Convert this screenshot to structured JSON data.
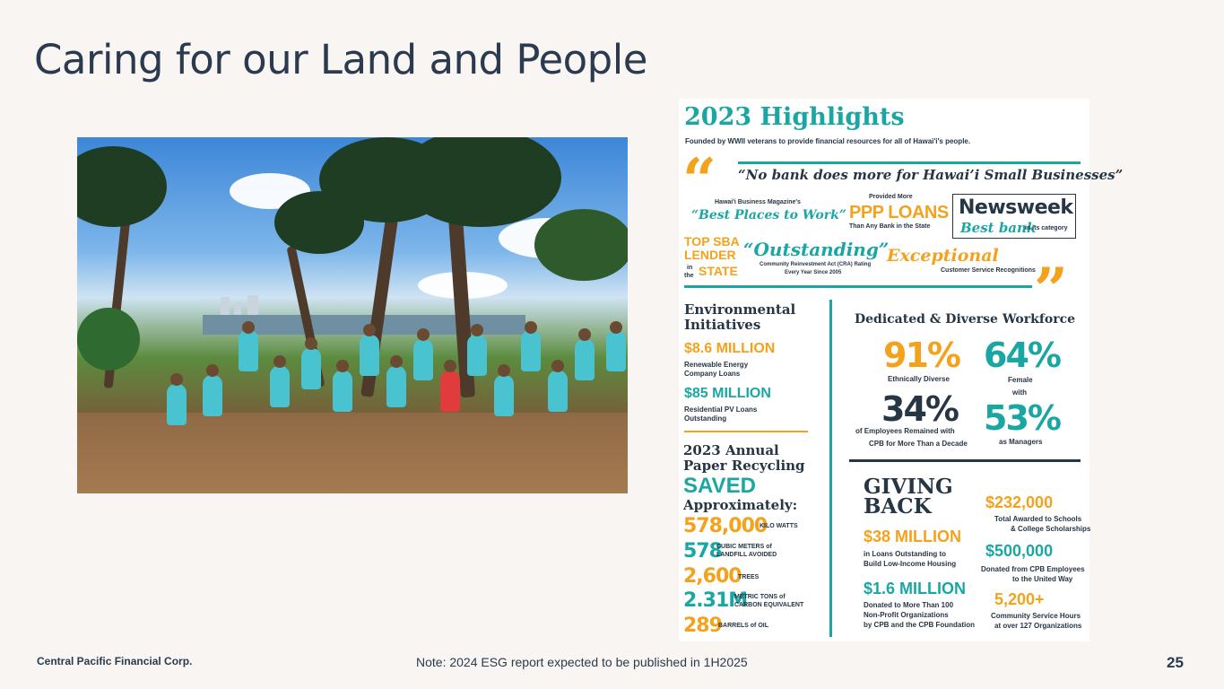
{
  "slide": {
    "title": "Caring for our Land and People",
    "footer_company": "Central Pacific Financial Corp.",
    "footer_note": "Note:  2024 ESG report expected to be published in 1H2025",
    "page_number": "25"
  },
  "photo": {
    "icon": "group-photo-volunteers"
  },
  "infographic": {
    "heading": "2023 Highlights",
    "subheading": "Founded by WWII veterans to provide financial resources for all of Hawai'i's people.",
    "quote": "“No bank does more for Hawai’i Small Businesses”",
    "awards": {
      "best_places_source": "Hawai'i Business Magazine's",
      "best_places": "“Best Places to Work”",
      "ppp_top": "Provided More",
      "ppp_main": "PPP LOANS",
      "ppp_bottom": "Than Any Bank in the State",
      "newsweek": "Newsweek",
      "newsweek_best": "Best bank",
      "newsweek_cat": "in its category",
      "sba_1": "TOP SBA",
      "sba_2": "LENDER",
      "sba_in": "in",
      "sba_the": "the",
      "sba_state": "STATE",
      "outstanding": "“Outstanding”",
      "outstanding_desc_1": "Community Reinvestment Act (CRA) Rating",
      "outstanding_desc_2": "Every Year Since 2005",
      "exceptional": "Exceptional",
      "exceptional_desc": "Customer Service Recognitions"
    },
    "environmental": {
      "title_1": "Environmental",
      "title_2": "Initiatives",
      "stat1_value": "$8.6 MILLION",
      "stat1_desc_1": "Renewable Energy",
      "stat1_desc_2": "Company Loans",
      "stat2_value": "$85 MILLION",
      "stat2_desc_1": "Residential PV Loans",
      "stat2_desc_2": "Outstanding"
    },
    "recycling": {
      "title_1": "2023 Annual",
      "title_2": "Paper Recycling",
      "saved": "SAVED",
      "approx": "Approximately:",
      "items": [
        {
          "value": "578,000",
          "unit_1": "KILO WATTS",
          "unit_2": ""
        },
        {
          "value": "578",
          "unit_1": "CUBIC METERS of",
          "unit_2": "LANDFILL AVOIDED"
        },
        {
          "value": "2,600",
          "unit_1": "TREES",
          "unit_2": ""
        },
        {
          "value": "2.31M",
          "unit_1": "METRIC TONS of",
          "unit_2": "CARBON EQUIVALENT"
        },
        {
          "value": "289",
          "unit_1": "BARRELS of OIL",
          "unit_2": ""
        }
      ]
    },
    "workforce": {
      "title": "Dedicated & Diverse Workforce",
      "diverse_value": "91%",
      "diverse_desc": "Ethnically Diverse",
      "female_value": "64%",
      "female_desc_1": "Female",
      "female_desc_2": "with",
      "tenure_value": "34%",
      "tenure_desc_1": "of Employees Remained with",
      "tenure_desc_2": "CPB for More Than a Decade",
      "managers_value": "53%",
      "managers_desc": "as Managers"
    },
    "giving": {
      "title_1": "GIVING",
      "title_2": "BACK",
      "loans_value": "$38 MILLION",
      "loans_desc_1": "in Loans Outstanding to",
      "loans_desc_2": "Build Low-Income Housing",
      "donated_value": "$1.6 MILLION",
      "donated_desc_1": "Donated to More Than 100",
      "donated_desc_2": "Non-Profit Organizations",
      "donated_desc_3": "by CPB and the CPB Foundation",
      "scholar_value": "$232,000",
      "scholar_desc_1": "Total Awarded to Schools",
      "scholar_desc_2": "& College Scholarships",
      "uw_value": "$500,000",
      "uw_desc_1": "Donated from CPB Employees",
      "uw_desc_2": "to the United Way",
      "hours_value": "5,200+",
      "hours_desc_1": "Community Service Hours",
      "hours_desc_2": "at over 127 Organizations"
    }
  }
}
